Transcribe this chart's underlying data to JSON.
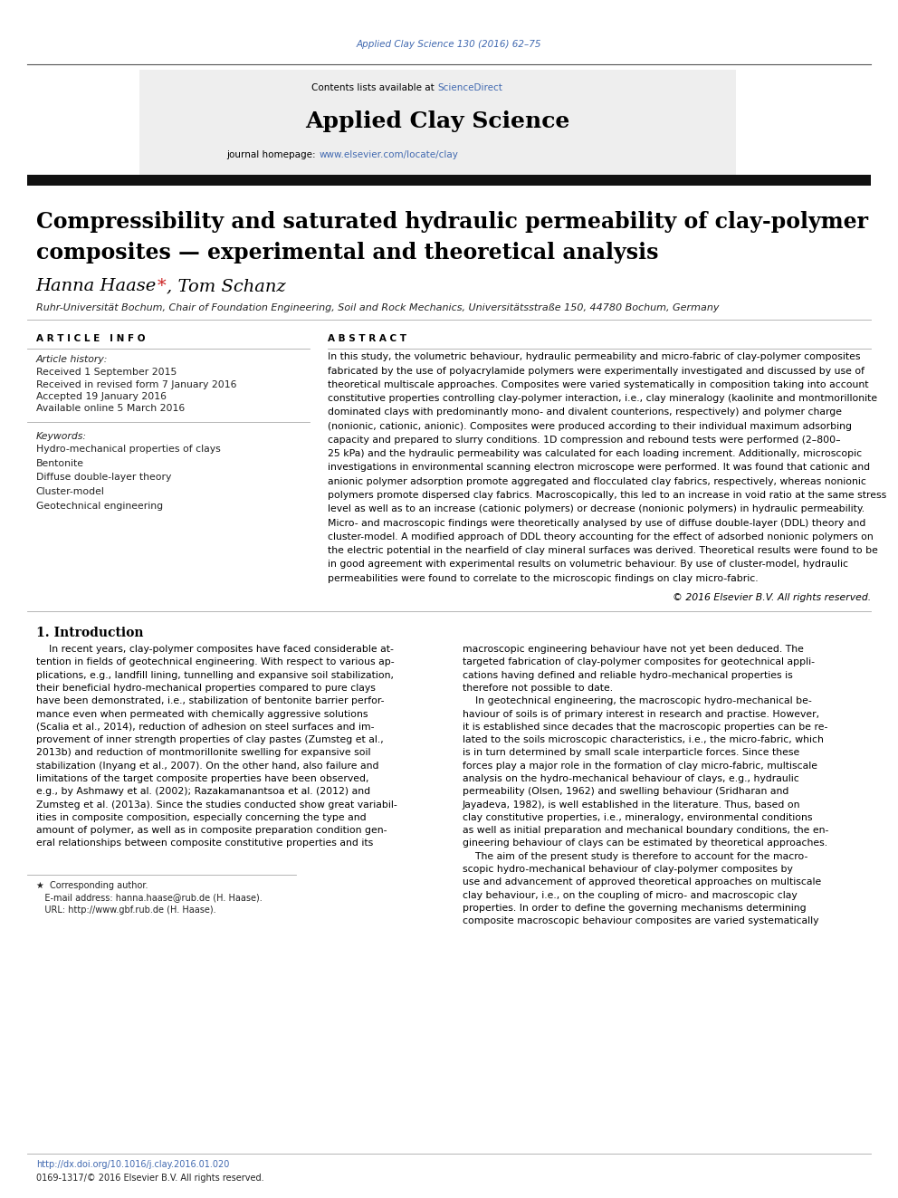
{
  "page_width": 9.92,
  "page_height": 13.23,
  "bg_color": "#ffffff",
  "top_citation": "Applied Clay Science 130 (2016) 62–75",
  "top_citation_color": "#4169b0",
  "journal_header_bg": "#eeeeee",
  "contents_line": "Contents lists available at",
  "science_direct_text": "ScienceDirect",
  "science_direct_color": "#4169b0",
  "journal_name": "Applied Clay Science",
  "journal_homepage_label": "journal homepage:",
  "journal_homepage_url": "www.elsevier.com/locate/clay",
  "journal_homepage_color": "#4169b0",
  "article_title_line1": "Compressibility and saturated hydraulic permeability of clay-polymer",
  "article_title_line2": "composites — experimental and theoretical analysis",
  "article_title_fontsize": 17,
  "authors_fontsize": 14,
  "affiliation": "Ruhr-Universität Bochum, Chair of Foundation Engineering, Soil and Rock Mechanics, Universitätsstraße 150, 44780 Bochum, Germany",
  "affiliation_fontsize": 8,
  "article_info_header": "A R T I C L E   I N F O",
  "abstract_header": "A B S T R A C T",
  "article_history_label": "Article history:",
  "received_1": "Received 1 September 2015",
  "received_2": "Received in revised form 7 January 2016",
  "accepted": "Accepted 19 January 2016",
  "available": "Available online 5 March 2016",
  "keywords_label": "Keywords:",
  "keywords": [
    "Hydro-mechanical properties of clays",
    "Bentonite",
    "Diffuse double-layer theory",
    "Cluster-model",
    "Geotechnical engineering"
  ],
  "copyright": "© 2016 Elsevier B.V. All rights reserved.",
  "section1_header": "1. Introduction",
  "footer_doi": "http://dx.doi.org/10.1016/j.clay.2016.01.020",
  "footer_issn": "0169-1317/© 2016 Elsevier B.V. All rights reserved.",
  "header_separator_color": "#555555",
  "thin_line_color": "#aaaaaa",
  "thick_bar_color": "#111111",
  "text_color": "#000000",
  "small_text_color": "#222222",
  "star_color": "#cc2222"
}
